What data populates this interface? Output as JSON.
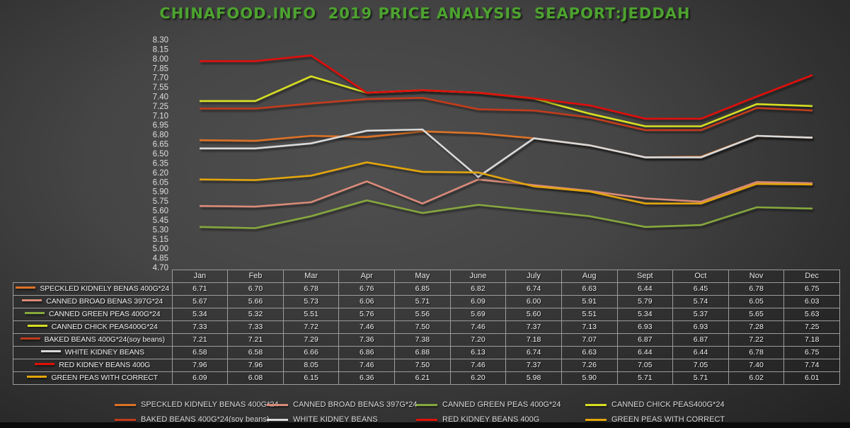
{
  "title": "CHINAFOOD.INFO  2019 PRICE ANALYSIS  SEAPORT:JEDDAH",
  "title_color": "#4da32f",
  "chart_data": {
    "type": "line",
    "categories": [
      "Jan",
      "Feb",
      "Mar",
      "Apr",
      "May",
      "June",
      "July",
      "Aug",
      "Sept",
      "Oct",
      "Nov",
      "Dec"
    ],
    "y_axis": {
      "min": 4.7,
      "max": 8.3,
      "step": 0.15
    },
    "grid": false,
    "legend_position": "bottom",
    "series": [
      {
        "name": "SPECKLED KIDNELY BENAS 400G*24",
        "color": "#dd7226",
        "values": [
          6.71,
          6.7,
          6.78,
          6.76,
          6.85,
          6.82,
          6.74,
          6.63,
          6.44,
          6.45,
          6.78,
          6.75
        ]
      },
      {
        "name": "CANNED BROAD BENAS 397G*24",
        "color": "#d98a78",
        "values": [
          5.67,
          5.66,
          5.73,
          6.06,
          5.71,
          6.09,
          6.0,
          5.91,
          5.79,
          5.74,
          6.05,
          6.03
        ]
      },
      {
        "name": "CANNED GREEN PEAS 400G*24",
        "color": "#85a83c",
        "values": [
          5.34,
          5.32,
          5.51,
          5.76,
          5.56,
          5.69,
          5.6,
          5.51,
          5.34,
          5.37,
          5.65,
          5.63
        ]
      },
      {
        "name": "CANNED CHICK PEAS400G*24",
        "color": "#d7de21",
        "values": [
          7.33,
          7.33,
          7.72,
          7.46,
          7.5,
          7.46,
          7.37,
          7.13,
          6.93,
          6.93,
          7.28,
          7.25
        ]
      },
      {
        "name": "BAKED BEANS 400G*24(soy beans)",
        "color": "#c23a1a",
        "values": [
          7.21,
          7.21,
          7.29,
          7.36,
          7.38,
          7.2,
          7.18,
          7.07,
          6.87,
          6.87,
          7.22,
          7.18
        ]
      },
      {
        "name": "WHITE KIDNEY BEANS",
        "color": "#d9d9d9",
        "values": [
          6.58,
          6.58,
          6.66,
          6.86,
          6.88,
          6.13,
          6.74,
          6.63,
          6.44,
          6.44,
          6.78,
          6.75
        ]
      },
      {
        "name": "RED KIDNEY BEANS 400G",
        "color": "#e01007",
        "values": [
          7.96,
          7.96,
          8.05,
          7.46,
          7.5,
          7.46,
          7.37,
          7.26,
          7.05,
          7.05,
          7.4,
          7.74
        ]
      },
      {
        "name": "GREEN PEAS WITH CORRECT",
        "color": "#e2a50a",
        "values": [
          6.09,
          6.08,
          6.15,
          6.36,
          6.21,
          6.2,
          5.98,
          5.9,
          5.71,
          5.71,
          6.02,
          6.01
        ]
      }
    ]
  }
}
